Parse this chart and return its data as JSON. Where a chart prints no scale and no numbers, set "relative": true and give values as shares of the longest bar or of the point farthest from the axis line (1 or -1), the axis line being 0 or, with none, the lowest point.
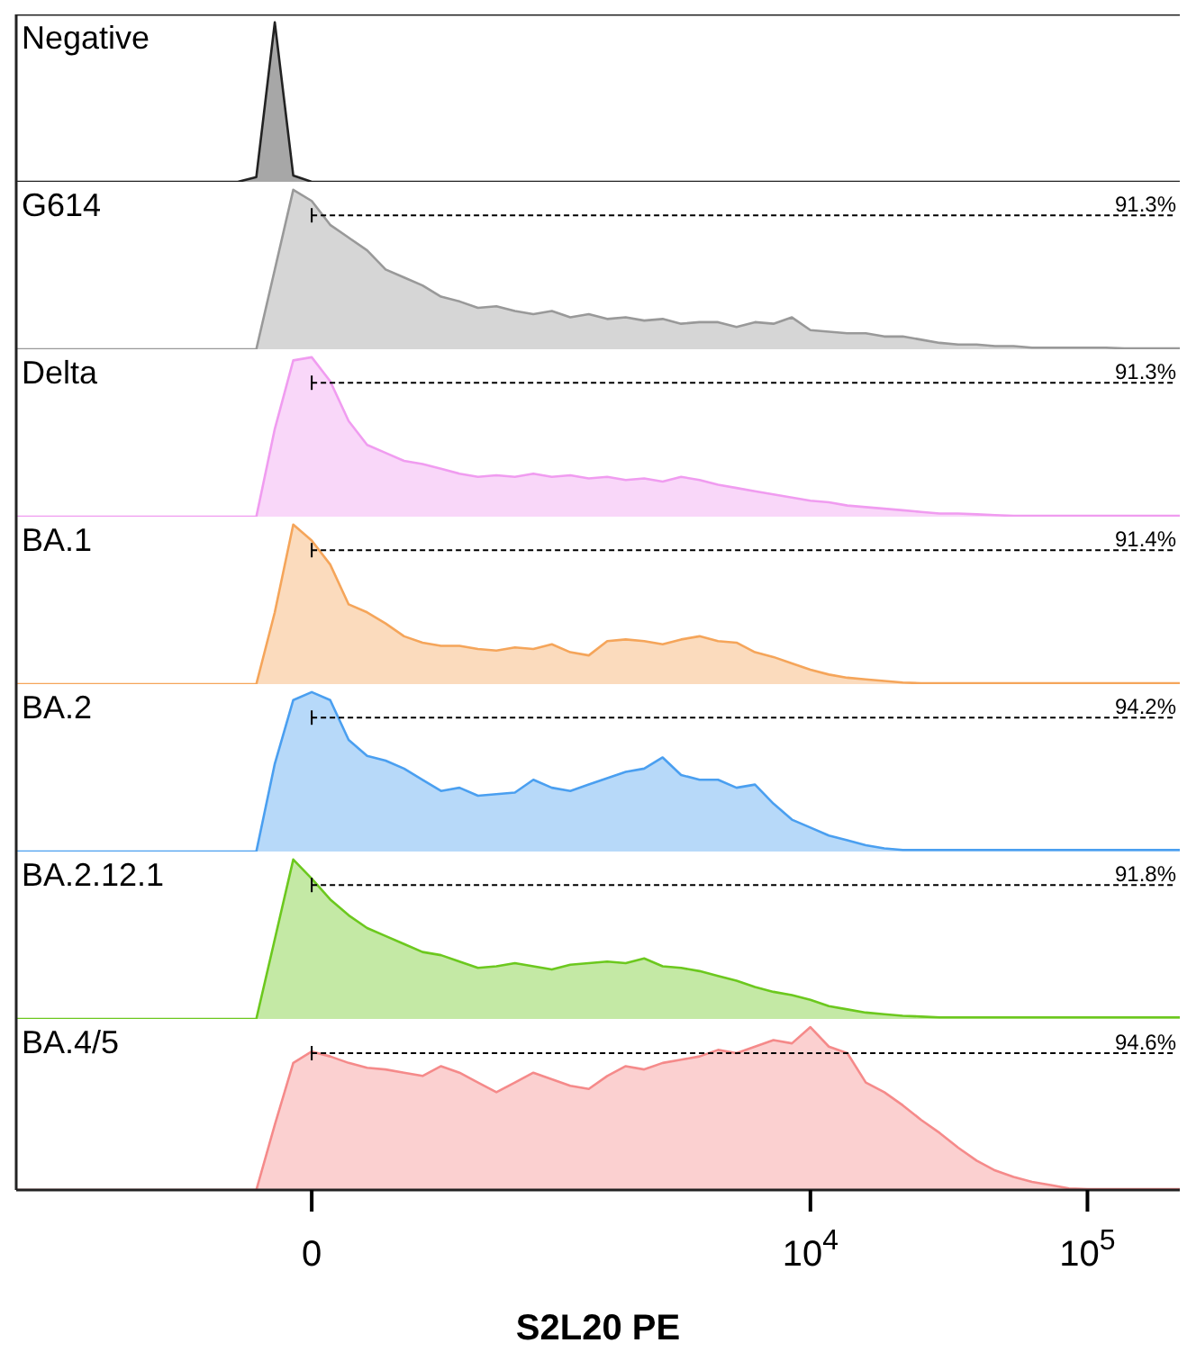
{
  "chart_data": [
    {
      "type": "area",
      "title": "Negative",
      "relative": true,
      "tick_labels": false,
      "color": "#222222",
      "categories": [
        null,
        null,
        null,
        null,
        null,
        null,
        null,
        null,
        null,
        null,
        null,
        null,
        null,
        null,
        null,
        null,
        null,
        null,
        null,
        null,
        null,
        null,
        null,
        null,
        null,
        null,
        null,
        null,
        null,
        null,
        null,
        null,
        null,
        null,
        null,
        null,
        null,
        null,
        null,
        null,
        null,
        null,
        null,
        null,
        null,
        null,
        null,
        null,
        null,
        null,
        null,
        null,
        null,
        null,
        null,
        null,
        null,
        null,
        null,
        null,
        null,
        null,
        null,
        null
      ],
      "values": [
        0,
        0,
        0,
        0,
        0,
        0,
        0,
        0,
        0,
        0,
        0,
        0,
        0,
        0.03,
        1,
        0.04,
        0,
        0,
        0,
        0,
        0,
        0,
        0,
        0,
        0,
        0,
        0,
        0,
        0,
        0,
        0,
        0,
        0,
        0,
        0,
        0,
        0,
        0,
        0,
        0,
        0,
        0,
        0,
        0,
        0,
        0,
        0,
        0,
        0,
        0,
        0,
        0,
        0,
        0,
        0,
        0,
        0,
        0,
        0,
        0,
        0,
        0,
        0,
        0
      ]
    },
    {
      "type": "area",
      "title": "G614",
      "relative": true,
      "tick_labels": false,
      "color": "#999999",
      "annotations": [
        "91.3%"
      ],
      "categories": [
        null,
        null,
        null,
        null,
        null,
        null,
        null,
        null,
        null,
        null,
        null,
        null,
        null,
        null,
        null,
        null,
        null,
        null,
        null,
        null,
        null,
        null,
        null,
        null,
        null,
        null,
        null,
        null,
        null,
        null,
        null,
        null,
        null,
        null,
        null,
        null,
        null,
        null,
        null,
        null,
        null,
        null,
        null,
        null,
        null,
        null,
        null,
        null,
        null,
        null,
        null,
        null,
        null,
        null,
        null,
        null,
        null,
        null,
        null,
        null,
        null,
        null,
        null,
        null
      ],
      "values": [
        0,
        0,
        0,
        0,
        0,
        0,
        0,
        0,
        0,
        0,
        0,
        0,
        0,
        0,
        0.5,
        1,
        0.93,
        0.78,
        0.7,
        0.62,
        0.5,
        0.45,
        0.4,
        0.33,
        0.3,
        0.26,
        0.27,
        0.24,
        0.22,
        0.24,
        0.2,
        0.22,
        0.19,
        0.2,
        0.18,
        0.19,
        0.16,
        0.17,
        0.17,
        0.14,
        0.17,
        0.16,
        0.2,
        0.12,
        0.11,
        0.1,
        0.1,
        0.08,
        0.08,
        0.06,
        0.04,
        0.03,
        0.03,
        0.02,
        0.02,
        0.01,
        0.01,
        0.01,
        0.01,
        0.01,
        0.005,
        0.005,
        0.005,
        0.005
      ]
    },
    {
      "type": "area",
      "title": "Delta",
      "relative": true,
      "tick_labels": false,
      "color": "#f09cf0",
      "annotations": [
        "91.3%"
      ],
      "categories": [
        null,
        null,
        null,
        null,
        null,
        null,
        null,
        null,
        null,
        null,
        null,
        null,
        null,
        null,
        null,
        null,
        null,
        null,
        null,
        null,
        null,
        null,
        null,
        null,
        null,
        null,
        null,
        null,
        null,
        null,
        null,
        null,
        null,
        null,
        null,
        null,
        null,
        null,
        null,
        null,
        null,
        null,
        null,
        null,
        null,
        null,
        null,
        null,
        null,
        null,
        null,
        null,
        null,
        null,
        null,
        null,
        null,
        null,
        null,
        null,
        null,
        null,
        null,
        null
      ],
      "values": [
        0,
        0,
        0,
        0,
        0,
        0,
        0,
        0,
        0,
        0,
        0,
        0,
        0,
        0,
        0.55,
        0.98,
        1,
        0.85,
        0.6,
        0.45,
        0.4,
        0.35,
        0.33,
        0.3,
        0.27,
        0.25,
        0.26,
        0.25,
        0.27,
        0.25,
        0.26,
        0.24,
        0.25,
        0.23,
        0.24,
        0.22,
        0.25,
        0.23,
        0.2,
        0.18,
        0.16,
        0.14,
        0.12,
        0.1,
        0.09,
        0.07,
        0.06,
        0.05,
        0.04,
        0.03,
        0.02,
        0.02,
        0.015,
        0.01,
        0.005,
        0.005,
        0.005,
        0.005,
        0.005,
        0.005,
        0.005,
        0.005,
        0.005,
        0.005
      ]
    },
    {
      "type": "area",
      "title": "BA.1",
      "relative": true,
      "tick_labels": false,
      "color": "#f5a55a",
      "annotations": [
        "91.4%"
      ],
      "categories": [
        null,
        null,
        null,
        null,
        null,
        null,
        null,
        null,
        null,
        null,
        null,
        null,
        null,
        null,
        null,
        null,
        null,
        null,
        null,
        null,
        null,
        null,
        null,
        null,
        null,
        null,
        null,
        null,
        null,
        null,
        null,
        null,
        null,
        null,
        null,
        null,
        null,
        null,
        null,
        null,
        null,
        null,
        null,
        null,
        null,
        null,
        null,
        null,
        null,
        null,
        null,
        null,
        null,
        null,
        null,
        null,
        null,
        null,
        null,
        null,
        null,
        null,
        null,
        null
      ],
      "values": [
        0,
        0,
        0,
        0,
        0,
        0,
        0,
        0,
        0,
        0,
        0,
        0,
        0,
        0,
        0.45,
        1,
        0.9,
        0.75,
        0.5,
        0.45,
        0.38,
        0.3,
        0.26,
        0.24,
        0.24,
        0.22,
        0.21,
        0.23,
        0.22,
        0.25,
        0.2,
        0.18,
        0.27,
        0.28,
        0.27,
        0.25,
        0.28,
        0.3,
        0.27,
        0.26,
        0.2,
        0.17,
        0.13,
        0.09,
        0.06,
        0.04,
        0.03,
        0.02,
        0.01,
        0.005,
        0.005,
        0.005,
        0.005,
        0.005,
        0.005,
        0.005,
        0.005,
        0.005,
        0.005,
        0.005,
        0.005,
        0.005,
        0.005,
        0.005
      ]
    },
    {
      "type": "area",
      "title": "BA.2",
      "relative": true,
      "tick_labels": false,
      "color": "#4a9ff0",
      "annotations": [
        "94.2%"
      ],
      "categories": [
        null,
        null,
        null,
        null,
        null,
        null,
        null,
        null,
        null,
        null,
        null,
        null,
        null,
        null,
        null,
        null,
        null,
        null,
        null,
        null,
        null,
        null,
        null,
        null,
        null,
        null,
        null,
        null,
        null,
        null,
        null,
        null,
        null,
        null,
        null,
        null,
        null,
        null,
        null,
        null,
        null,
        null,
        null,
        null,
        null,
        null,
        null,
        null,
        null,
        null,
        null,
        null,
        null,
        null,
        null,
        null,
        null,
        null,
        null,
        null,
        null,
        null,
        null,
        null
      ],
      "values": [
        0,
        0,
        0,
        0,
        0,
        0,
        0,
        0,
        0,
        0,
        0,
        0,
        0,
        0,
        0.55,
        0.95,
        1,
        0.95,
        0.7,
        0.6,
        0.57,
        0.52,
        0.45,
        0.38,
        0.4,
        0.35,
        0.36,
        0.37,
        0.45,
        0.4,
        0.38,
        0.42,
        0.46,
        0.5,
        0.52,
        0.59,
        0.48,
        0.45,
        0.45,
        0.4,
        0.42,
        0.3,
        0.2,
        0.15,
        0.1,
        0.07,
        0.04,
        0.02,
        0.01,
        0.01,
        0.01,
        0.01,
        0.01,
        0.01,
        0.01,
        0.01,
        0.01,
        0.01,
        0.01,
        0.01,
        0.01,
        0.01,
        0.01,
        0.01
      ]
    },
    {
      "type": "area",
      "title": "BA.2.12.1",
      "relative": true,
      "tick_labels": false,
      "color": "#6cc81e",
      "annotations": [
        "91.8%"
      ],
      "categories": [
        null,
        null,
        null,
        null,
        null,
        null,
        null,
        null,
        null,
        null,
        null,
        null,
        null,
        null,
        null,
        null,
        null,
        null,
        null,
        null,
        null,
        null,
        null,
        null,
        null,
        null,
        null,
        null,
        null,
        null,
        null,
        null,
        null,
        null,
        null,
        null,
        null,
        null,
        null,
        null,
        null,
        null,
        null,
        null,
        null,
        null,
        null,
        null,
        null,
        null,
        null,
        null,
        null,
        null,
        null,
        null,
        null,
        null,
        null,
        null,
        null,
        null,
        null,
        null
      ],
      "values": [
        0,
        0,
        0,
        0,
        0,
        0,
        0,
        0,
        0,
        0,
        0,
        0,
        0,
        0,
        0.5,
        1,
        0.88,
        0.75,
        0.65,
        0.57,
        0.52,
        0.47,
        0.42,
        0.4,
        0.36,
        0.32,
        0.33,
        0.35,
        0.33,
        0.31,
        0.34,
        0.35,
        0.36,
        0.35,
        0.38,
        0.33,
        0.32,
        0.3,
        0.27,
        0.24,
        0.2,
        0.17,
        0.15,
        0.12,
        0.08,
        0.06,
        0.04,
        0.03,
        0.02,
        0.015,
        0.01,
        0.01,
        0.01,
        0.01,
        0.01,
        0.01,
        0.01,
        0.01,
        0.01,
        0.01,
        0.01,
        0.01,
        0.01,
        0.01
      ]
    },
    {
      "type": "area",
      "title": "BA.4/5",
      "relative": true,
      "tick_labels": "x",
      "xlabel": "S2L20 PE",
      "color": "#f58a8a",
      "annotations": [
        "94.6%"
      ],
      "categories": [
        null,
        null,
        null,
        null,
        null,
        null,
        null,
        null,
        null,
        null,
        null,
        null,
        null,
        null,
        null,
        null,
        "0",
        null,
        null,
        null,
        null,
        null,
        null,
        null,
        null,
        null,
        null,
        null,
        null,
        null,
        null,
        null,
        null,
        null,
        null,
        null,
        null,
        null,
        null,
        null,
        null,
        null,
        null,
        "10$^{4}$",
        null,
        null,
        null,
        null,
        null,
        null,
        null,
        null,
        null,
        null,
        null,
        null,
        null,
        null,
        "10$^{5}$",
        null,
        null,
        null,
        null,
        null
      ],
      "values": [
        0,
        0,
        0,
        0,
        0,
        0,
        0,
        0,
        0,
        0,
        0,
        0,
        0,
        0,
        0.4,
        0.78,
        0.85,
        0.82,
        0.78,
        0.75,
        0.74,
        0.72,
        0.7,
        0.76,
        0.72,
        0.66,
        0.6,
        0.66,
        0.72,
        0.68,
        0.64,
        0.62,
        0.7,
        0.76,
        0.74,
        0.78,
        0.8,
        0.82,
        0.86,
        0.84,
        0.88,
        0.92,
        0.9,
        1,
        0.88,
        0.84,
        0.66,
        0.6,
        0.52,
        0.43,
        0.35,
        0.26,
        0.18,
        0.12,
        0.08,
        0.05,
        0.03,
        0.01,
        0.005,
        0.005,
        0.005,
        0.005,
        0.005,
        0.005
      ]
    }
  ]
}
